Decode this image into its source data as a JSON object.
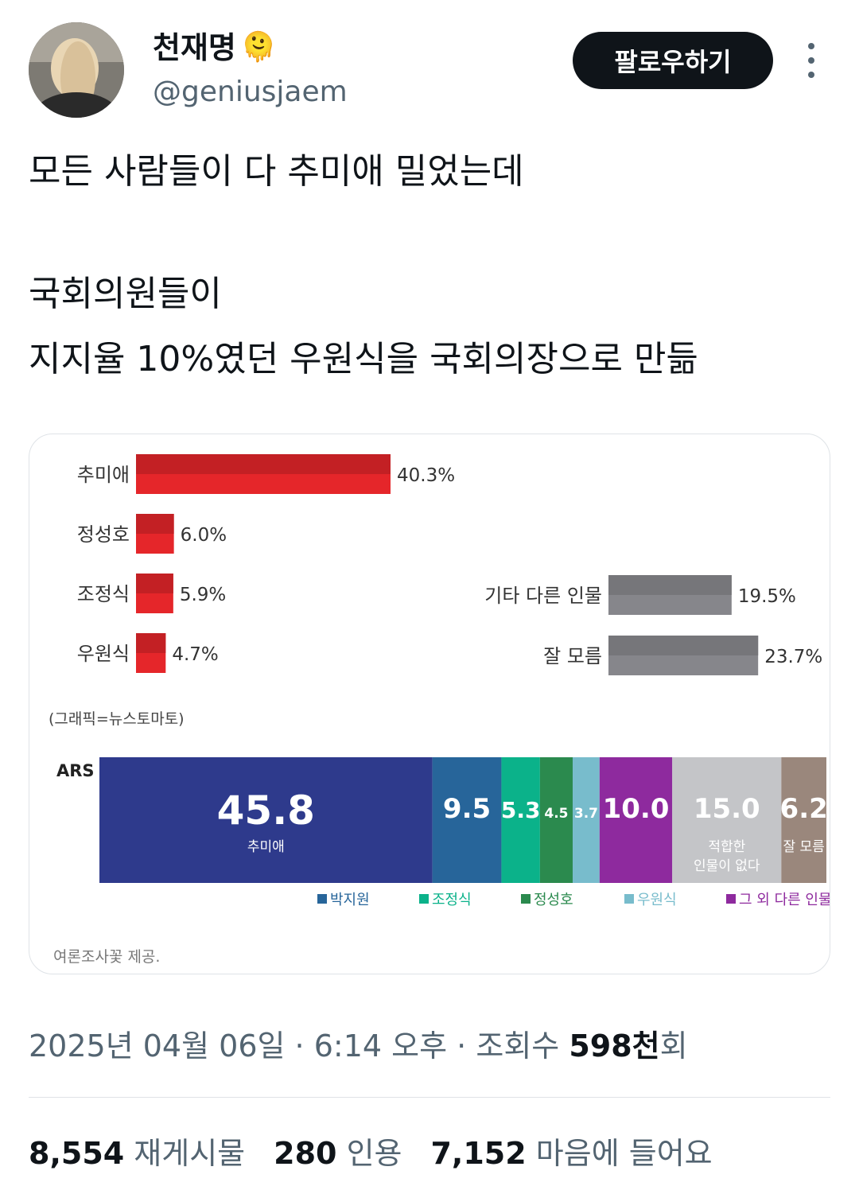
{
  "author": {
    "name": "천재명",
    "emoji": "🫠",
    "handle": "@geniusjaem",
    "follow_label": "팔로우하기"
  },
  "tweet": {
    "lines": [
      "모든 사람들이 다 추미애 밀었는데",
      "국회의원들이",
      "지지율 10%였던 우원식을 국회의장으로 만듦"
    ]
  },
  "meta": {
    "date": "2025년 04월 06일",
    "time": "6:14 오후",
    "views_label": "조회수",
    "views_value": "598천",
    "views_suffix": "회",
    "sep": "·"
  },
  "stats": [
    {
      "value": "8,554",
      "label": "재게시물"
    },
    {
      "value": "280",
      "label": "인용"
    },
    {
      "value": "7,152",
      "label": "마음에 들어요"
    }
  ],
  "chart_data": [
    {
      "type": "bar",
      "orientation": "horizontal",
      "categories": [
        "추미애",
        "정성호",
        "조정식",
        "우원식",
        "기타 다른 인물",
        "잘 모름"
      ],
      "values": [
        40.3,
        6.0,
        5.9,
        4.7,
        19.5,
        23.7
      ],
      "value_labels": [
        "40.3%",
        "6.0%",
        "5.9%",
        "4.7%",
        "19.5%",
        "23.7%"
      ],
      "colors": [
        "#e5262a",
        "#e5262a",
        "#e5262a",
        "#e5262a",
        "#86868b",
        "#86868b"
      ],
      "source": "(그래픽=뉴스토마토)"
    },
    {
      "type": "bar",
      "orientation": "stacked-horizontal",
      "row_label": "ARS",
      "segments": [
        {
          "value": 45.8,
          "label": "45.8",
          "sub": "추미애",
          "color": "#2e3a8c"
        },
        {
          "value": 9.5,
          "label": "9.5",
          "sub": "",
          "color": "#27659a"
        },
        {
          "value": 5.3,
          "label": "5.3",
          "sub": "",
          "color": "#0bb28a"
        },
        {
          "value": 4.5,
          "label": "4.5",
          "sub": "",
          "color": "#2b8a4e"
        },
        {
          "value": 3.7,
          "label": "3.7",
          "sub": "",
          "color": "#78bccc"
        },
        {
          "value": 10.0,
          "label": "10.0",
          "sub": "",
          "color": "#8e2a9e"
        },
        {
          "value": 15.0,
          "label": "15.0",
          "sub": "적합한 인물이 없다",
          "color": "#c4c5c8"
        },
        {
          "value": 6.2,
          "label": "6.2",
          "sub": "잘 모름",
          "color": "#9a877c"
        }
      ],
      "legend": [
        {
          "name": "박지원",
          "color": "#27659a"
        },
        {
          "name": "조정식",
          "color": "#0bb28a"
        },
        {
          "name": "정성호",
          "color": "#2b8a4e"
        },
        {
          "name": "우원식",
          "color": "#78bccc"
        },
        {
          "name": "그 외 다른 인물",
          "color": "#8e2a9e"
        }
      ],
      "source": "여론조사꽃 제공."
    }
  ]
}
